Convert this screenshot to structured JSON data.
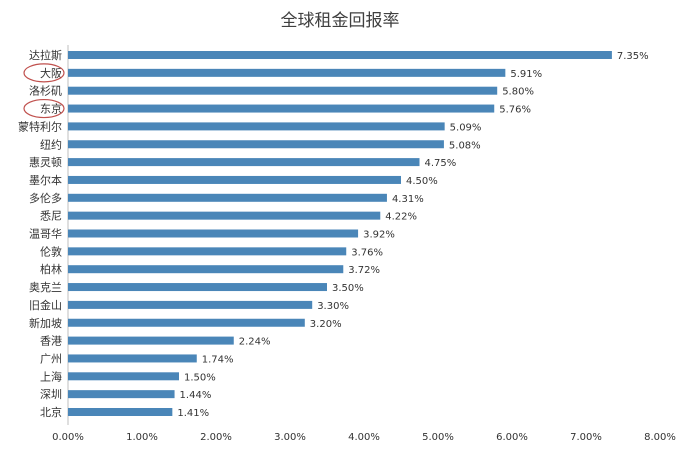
{
  "chart_data": {
    "type": "bar",
    "orientation": "horizontal",
    "title": "全球租金回报率",
    "xlabel": "",
    "ylabel": "",
    "xlim": [
      0,
      8
    ],
    "x_ticks": [
      "0.00%",
      "1.00%",
      "2.00%",
      "3.00%",
      "4.00%",
      "5.00%",
      "6.00%",
      "7.00%",
      "8.00%"
    ],
    "categories": [
      "达拉斯",
      "大阪",
      "洛杉矶",
      "东京",
      "蒙特利尔",
      "纽约",
      "惠灵顿",
      "墨尔本",
      "多伦多",
      "悉尼",
      "温哥华",
      "伦敦",
      "柏林",
      "奥克兰",
      "旧金山",
      "新加坡",
      "香港",
      "广州",
      "上海",
      "深圳",
      "北京"
    ],
    "values": [
      7.35,
      5.91,
      5.8,
      5.76,
      5.09,
      5.08,
      4.75,
      4.5,
      4.31,
      4.22,
      3.92,
      3.76,
      3.72,
      3.5,
      3.3,
      3.2,
      2.24,
      1.74,
      1.5,
      1.44,
      1.41
    ],
    "value_labels": [
      "7.35%",
      "5.91%",
      "5.80%",
      "5.76%",
      "5.09%",
      "5.08%",
      "4.75%",
      "4.50%",
      "4.31%",
      "4.22%",
      "3.92%",
      "3.76%",
      "3.72%",
      "3.50%",
      "3.30%",
      "3.20%",
      "2.24%",
      "1.74%",
      "1.50%",
      "1.44%",
      "1.41%"
    ],
    "highlighted_categories": [
      "大阪",
      "东京"
    ],
    "bar_color": "#4a86b8",
    "highlight_color": "#c0504d",
    "grid": false,
    "legend": "none"
  }
}
